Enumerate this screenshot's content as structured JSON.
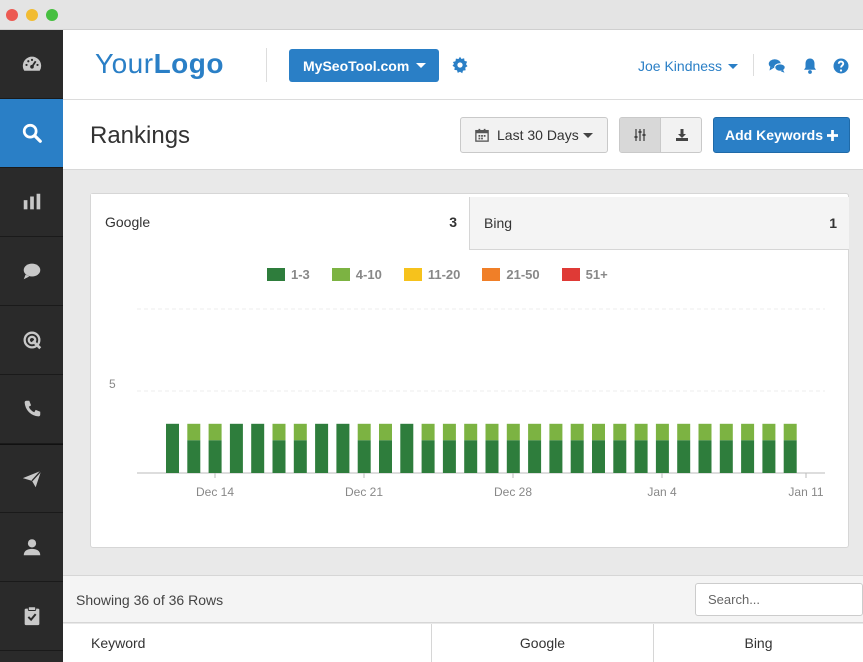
{
  "logo": {
    "light": "Your",
    "bold": "Logo"
  },
  "header": {
    "site_selector": "MySeoTool.com",
    "user_name": "Joe Kindness"
  },
  "sidebar": {
    "items": [
      {
        "icon": "dashboard-icon",
        "active": false
      },
      {
        "icon": "search-icon",
        "active": true
      },
      {
        "icon": "bar-chart-icon",
        "active": false
      },
      {
        "icon": "chat-bubble-icon",
        "active": false
      },
      {
        "icon": "target-icon",
        "active": false
      },
      {
        "icon": "phone-icon",
        "active": false
      },
      {
        "icon": "paper-plane-icon",
        "active": false
      },
      {
        "icon": "user-icon",
        "active": false
      },
      {
        "icon": "clipboard-check-icon",
        "active": false
      }
    ]
  },
  "page": {
    "title": "Rankings",
    "date_range": "Last 30 Days",
    "add_button": "Add Keywords"
  },
  "tabs": [
    {
      "label": "Google",
      "count": "3"
    },
    {
      "label": "Bing",
      "count": "1"
    }
  ],
  "colors": {
    "accent": "#2a7fc6",
    "r1_3": "#2e7d3c",
    "r4_10": "#7cb342",
    "r11_20": "#f6c21c",
    "r21_50": "#f07f28",
    "r51": "#df3a36"
  },
  "chart_data": {
    "type": "bar",
    "stacked": true,
    "legend": [
      "1-3",
      "4-10",
      "11-20",
      "21-50",
      "51+"
    ],
    "legend_position": "top",
    "y_tick_labels": [
      "5"
    ],
    "ylim": [
      0,
      10
    ],
    "x_tick_labels": [
      "Dec 14",
      "Dec 21",
      "Dec 28",
      "Jan 4",
      "Jan 11"
    ],
    "series": [
      {
        "name": "1-3",
        "values": [
          3,
          2,
          2,
          3,
          3,
          2,
          2,
          3,
          3,
          2,
          2,
          3,
          2,
          2,
          2,
          2,
          2,
          2,
          2,
          2,
          2,
          2,
          2,
          2,
          2,
          2,
          2,
          2,
          2,
          2
        ]
      },
      {
        "name": "4-10",
        "values": [
          0,
          1,
          1,
          0,
          0,
          1,
          1,
          0,
          0,
          1,
          1,
          0,
          1,
          1,
          1,
          1,
          1,
          1,
          1,
          1,
          1,
          1,
          1,
          1,
          1,
          1,
          1,
          1,
          1,
          1
        ]
      },
      {
        "name": "11-20",
        "values": [
          0,
          0,
          0,
          0,
          0,
          0,
          0,
          0,
          0,
          0,
          0,
          0,
          0,
          0,
          0,
          0,
          0,
          0,
          0,
          0,
          0,
          0,
          0,
          0,
          0,
          0,
          0,
          0,
          0,
          0
        ]
      },
      {
        "name": "21-50",
        "values": [
          0,
          0,
          0,
          0,
          0,
          0,
          0,
          0,
          0,
          0,
          0,
          0,
          0,
          0,
          0,
          0,
          0,
          0,
          0,
          0,
          0,
          0,
          0,
          0,
          0,
          0,
          0,
          0,
          0,
          0
        ]
      },
      {
        "name": "51+",
        "values": [
          0,
          0,
          0,
          0,
          0,
          0,
          0,
          0,
          0,
          0,
          0,
          0,
          0,
          0,
          0,
          0,
          0,
          0,
          0,
          0,
          0,
          0,
          0,
          0,
          0,
          0,
          0,
          0,
          0,
          0
        ]
      }
    ]
  },
  "table": {
    "rows_info": "Showing 36 of 36 Rows",
    "search_placeholder": "Search...",
    "columns": [
      "Keyword",
      "Google",
      "Bing"
    ]
  }
}
